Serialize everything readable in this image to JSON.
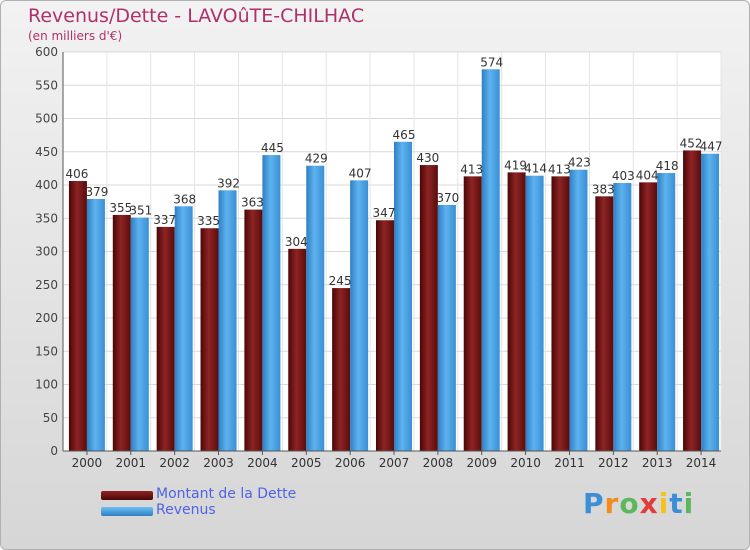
{
  "title": "Revenus/Dette - LAVOûTE-CHILHAC",
  "subtitle": "(en milliers d'€)",
  "colors": {
    "dette": "#7a1a1a",
    "revenus": "#4aa3e3",
    "title": "#b0306a",
    "legend_text": "#4f63e4"
  },
  "legend": {
    "items": [
      {
        "label": "Montant de la Dette",
        "color": "#6e1515"
      },
      {
        "label": "Revenus",
        "color": "#4aa3e3"
      }
    ]
  },
  "logo": {
    "letters": [
      "P",
      "r",
      "o",
      "x",
      "i",
      "t",
      "i"
    ],
    "colors": [
      "#3a8fd6",
      "#f28c1e",
      "#5cb85c",
      "#e23b3b",
      "#f2c318",
      "#3a8fd6",
      "#5cb85c"
    ]
  },
  "chart_data": {
    "type": "bar",
    "categories": [
      "2000",
      "2001",
      "2002",
      "2003",
      "2004",
      "2005",
      "2006",
      "2007",
      "2008",
      "2009",
      "2010",
      "2011",
      "2012",
      "2013",
      "2014"
    ],
    "series": [
      {
        "name": "Montant de la Dette",
        "values": [
          406,
          355,
          337,
          335,
          363,
          304,
          245,
          347,
          430,
          413,
          419,
          413,
          383,
          404,
          452
        ]
      },
      {
        "name": "Revenus",
        "values": [
          379,
          351,
          368,
          392,
          445,
          429,
          407,
          465,
          370,
          574,
          414,
          423,
          403,
          418,
          447
        ]
      }
    ],
    "ylim": [
      0,
      600
    ],
    "yticks": [
      0,
      50,
      100,
      150,
      200,
      250,
      300,
      350,
      400,
      450,
      500,
      550,
      600
    ],
    "grid": true,
    "legend_position": "bottom-left"
  }
}
